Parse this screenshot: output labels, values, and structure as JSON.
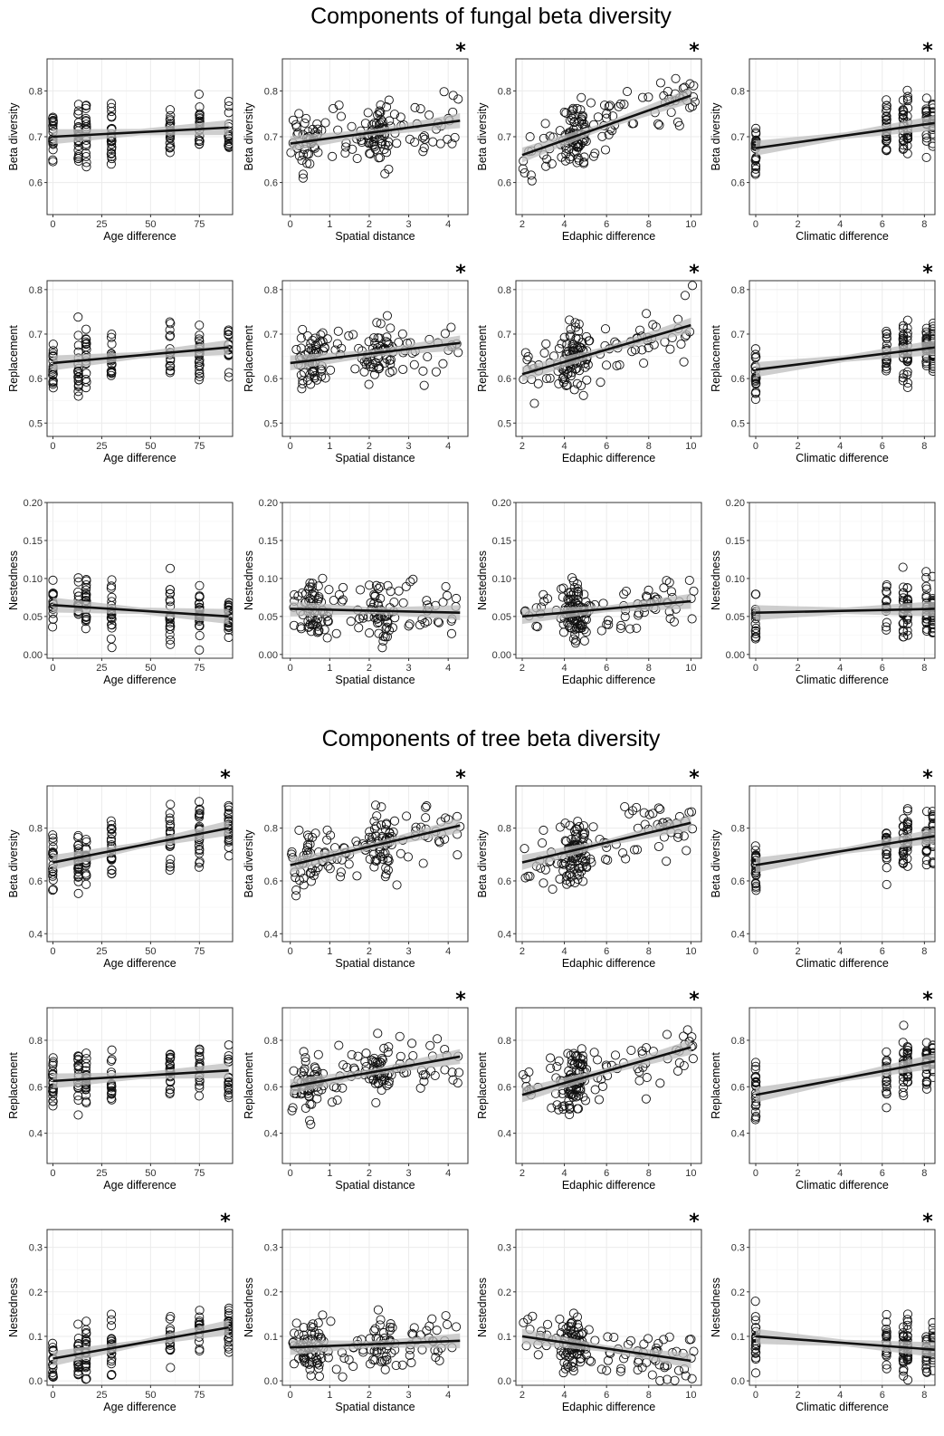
{
  "figure": {
    "titles": [
      "Components of fungal beta diversity",
      "Components of tree beta diversity"
    ]
  },
  "chart_data": [
    {
      "id": "f-b-age",
      "group": "fungal",
      "type": "scatter",
      "xlabel": "Age difference",
      "ylabel": "Beta diversity",
      "xlim": [
        -3,
        92
      ],
      "ylim": [
        0.53,
        0.87
      ],
      "xticks": [
        0,
        25,
        50,
        75
      ],
      "yticks": [
        0.6,
        0.7,
        0.8
      ],
      "significant": false,
      "trend": {
        "x0": 0,
        "y0": 0.7,
        "x1": 90,
        "y1": 0.72
      },
      "layout": "columns",
      "xcols": [
        0,
        13,
        17,
        30,
        60,
        75,
        90
      ]
    },
    {
      "id": "f-b-spa",
      "group": "fungal",
      "type": "scatter",
      "xlabel": "Spatial distance",
      "ylabel": "Beta diversity",
      "xlim": [
        -0.2,
        4.5
      ],
      "ylim": [
        0.53,
        0.87
      ],
      "xticks": [
        0,
        1,
        2,
        3,
        4
      ],
      "yticks": [
        0.6,
        0.7,
        0.8
      ],
      "significant": true,
      "trend": {
        "x0": 0,
        "y0": 0.685,
        "x1": 4.3,
        "y1": 0.735
      },
      "layout": "cloud",
      "xmin": 0,
      "xmax": 4.3,
      "xclusters": [
        0.5,
        2.3
      ]
    },
    {
      "id": "f-b-eda",
      "group": "fungal",
      "type": "scatter",
      "xlabel": "Edaphic difference",
      "ylabel": "Beta diversity",
      "xlim": [
        1.7,
        10.5
      ],
      "ylim": [
        0.53,
        0.87
      ],
      "xticks": [
        2,
        4,
        6,
        8,
        10
      ],
      "yticks": [
        0.6,
        0.7,
        0.8
      ],
      "significant": true,
      "trend": {
        "x0": 2,
        "y0": 0.66,
        "x1": 10,
        "y1": 0.79
      },
      "layout": "cloud",
      "xmin": 2,
      "xmax": 10.2,
      "xclusters": [
        4.5
      ]
    },
    {
      "id": "f-b-cli",
      "group": "fungal",
      "type": "scatter",
      "xlabel": "Climatic difference",
      "ylabel": "Beta diversity",
      "xlim": [
        -0.3,
        8.5
      ],
      "ylim": [
        0.53,
        0.87
      ],
      "xticks": [
        0,
        2,
        4,
        6,
        8
      ],
      "yticks": [
        0.6,
        0.7,
        0.8
      ],
      "significant": true,
      "trend": {
        "x0": 0,
        "y0": 0.675,
        "x1": 8.5,
        "y1": 0.73
      },
      "layout": "columns",
      "xcols": [
        0,
        6.2,
        7,
        7.2,
        8.1,
        8.4
      ]
    },
    {
      "id": "f-r-age",
      "group": "fungal",
      "type": "scatter",
      "xlabel": "Age difference",
      "ylabel": "Replacement",
      "xlim": [
        -3,
        92
      ],
      "ylim": [
        0.47,
        0.82
      ],
      "xticks": [
        0,
        25,
        50,
        75
      ],
      "yticks": [
        0.5,
        0.6,
        0.7,
        0.8
      ],
      "significant": false,
      "trend": {
        "x0": 0,
        "y0": 0.635,
        "x1": 90,
        "y1": 0.67
      },
      "layout": "columns",
      "xcols": [
        0,
        13,
        17,
        30,
        60,
        75,
        90
      ]
    },
    {
      "id": "f-r-spa",
      "group": "fungal",
      "type": "scatter",
      "xlabel": "Spatial distance",
      "ylabel": "Replacement",
      "xlim": [
        -0.2,
        4.5
      ],
      "ylim": [
        0.47,
        0.82
      ],
      "xticks": [
        0,
        1,
        2,
        3,
        4
      ],
      "yticks": [
        0.5,
        0.6,
        0.7,
        0.8
      ],
      "significant": true,
      "trend": {
        "x0": 0,
        "y0": 0.635,
        "x1": 4.3,
        "y1": 0.68
      },
      "layout": "cloud",
      "xmin": 0,
      "xmax": 4.3,
      "xclusters": [
        0.5,
        2.3
      ]
    },
    {
      "id": "f-r-eda",
      "group": "fungal",
      "type": "scatter",
      "xlabel": "Edaphic difference",
      "ylabel": "Replacement",
      "xlim": [
        1.7,
        10.5
      ],
      "ylim": [
        0.47,
        0.82
      ],
      "xticks": [
        2,
        4,
        6,
        8,
        10
      ],
      "yticks": [
        0.5,
        0.6,
        0.7,
        0.8
      ],
      "significant": true,
      "trend": {
        "x0": 2,
        "y0": 0.61,
        "x1": 10,
        "y1": 0.72
      },
      "layout": "cloud",
      "xmin": 2,
      "xmax": 10.2,
      "xclusters": [
        4.5
      ]
    },
    {
      "id": "f-r-cli",
      "group": "fungal",
      "type": "scatter",
      "xlabel": "Climatic difference",
      "ylabel": "Replacement",
      "xlim": [
        -0.3,
        8.5
      ],
      "ylim": [
        0.47,
        0.82
      ],
      "xticks": [
        0,
        2,
        4,
        6,
        8
      ],
      "yticks": [
        0.5,
        0.6,
        0.7,
        0.8
      ],
      "significant": true,
      "trend": {
        "x0": 0,
        "y0": 0.62,
        "x1": 8.5,
        "y1": 0.67
      },
      "layout": "columns",
      "xcols": [
        0,
        6.2,
        7,
        7.2,
        8.1,
        8.4
      ]
    },
    {
      "id": "f-n-age",
      "group": "fungal",
      "type": "scatter",
      "xlabel": "Age difference",
      "ylabel": "Nestedness",
      "xlim": [
        -3,
        92
      ],
      "ylim": [
        -0.005,
        0.2
      ],
      "xticks": [
        0,
        25,
        50,
        75
      ],
      "yticks": [
        0.0,
        0.05,
        0.1,
        0.15,
        0.2
      ],
      "ytickFormat": 2,
      "significant": false,
      "trend": {
        "x0": 0,
        "y0": 0.065,
        "x1": 90,
        "y1": 0.05
      },
      "layout": "columns",
      "xcols": [
        0,
        13,
        17,
        30,
        60,
        75,
        90
      ]
    },
    {
      "id": "f-n-spa",
      "group": "fungal",
      "type": "scatter",
      "xlabel": "Spatial distance",
      "ylabel": "Nestedness",
      "xlim": [
        -0.2,
        4.5
      ],
      "ylim": [
        -0.005,
        0.2
      ],
      "xticks": [
        0,
        1,
        2,
        3,
        4
      ],
      "yticks": [
        0.0,
        0.05,
        0.1,
        0.15,
        0.2
      ],
      "ytickFormat": 2,
      "significant": false,
      "trend": {
        "x0": 0,
        "y0": 0.06,
        "x1": 4.3,
        "y1": 0.055
      },
      "layout": "cloud",
      "xmin": 0,
      "xmax": 4.3,
      "xclusters": [
        0.5,
        2.3
      ]
    },
    {
      "id": "f-n-eda",
      "group": "fungal",
      "type": "scatter",
      "xlabel": "Edaphic difference",
      "ylabel": "Nestedness",
      "xlim": [
        1.7,
        10.5
      ],
      "ylim": [
        -0.005,
        0.2
      ],
      "xticks": [
        2,
        4,
        6,
        8,
        10
      ],
      "yticks": [
        0.0,
        0.05,
        0.1,
        0.15,
        0.2
      ],
      "ytickFormat": 2,
      "significant": false,
      "trend": {
        "x0": 2,
        "y0": 0.05,
        "x1": 10,
        "y1": 0.07
      },
      "layout": "cloud",
      "xmin": 2,
      "xmax": 10.2,
      "xclusters": [
        4.5
      ]
    },
    {
      "id": "f-n-cli",
      "group": "fungal",
      "type": "scatter",
      "xlabel": "Climatic difference",
      "ylabel": "Nestedness",
      "xlim": [
        -0.3,
        8.5
      ],
      "ylim": [
        -0.005,
        0.2
      ],
      "xticks": [
        0,
        2,
        4,
        6,
        8
      ],
      "yticks": [
        0.0,
        0.05,
        0.1,
        0.15,
        0.2
      ],
      "ytickFormat": 2,
      "significant": false,
      "trend": {
        "x0": 0,
        "y0": 0.055,
        "x1": 8.5,
        "y1": 0.06
      },
      "layout": "columns",
      "xcols": [
        0,
        6.2,
        7,
        7.2,
        8.1,
        8.4
      ]
    },
    {
      "id": "t-b-age",
      "group": "tree",
      "type": "scatter",
      "xlabel": "Age difference",
      "ylabel": "Beta diversity",
      "xlim": [
        -3,
        92
      ],
      "ylim": [
        0.37,
        0.96
      ],
      "xticks": [
        0,
        25,
        50,
        75
      ],
      "yticks": [
        0.4,
        0.6,
        0.8
      ],
      "significant": true,
      "trend": {
        "x0": 0,
        "y0": 0.67,
        "x1": 90,
        "y1": 0.8
      },
      "layout": "columns",
      "xcols": [
        0,
        13,
        17,
        30,
        60,
        75,
        90
      ]
    },
    {
      "id": "t-b-spa",
      "group": "tree",
      "type": "scatter",
      "xlabel": "Spatial distance",
      "ylabel": "Beta diversity",
      "xlim": [
        -0.2,
        4.5
      ],
      "ylim": [
        0.37,
        0.96
      ],
      "xticks": [
        0,
        1,
        2,
        3,
        4
      ],
      "yticks": [
        0.4,
        0.6,
        0.8
      ],
      "significant": true,
      "trend": {
        "x0": 0,
        "y0": 0.66,
        "x1": 4.3,
        "y1": 0.81
      },
      "layout": "cloud",
      "xmin": 0,
      "xmax": 4.3,
      "xclusters": [
        0.5,
        2.3
      ]
    },
    {
      "id": "t-b-eda",
      "group": "tree",
      "type": "scatter",
      "xlabel": "Edaphic difference",
      "ylabel": "Beta diversity",
      "xlim": [
        1.7,
        10.5
      ],
      "ylim": [
        0.37,
        0.96
      ],
      "xticks": [
        2,
        4,
        6,
        8,
        10
      ],
      "yticks": [
        0.4,
        0.6,
        0.8
      ],
      "significant": true,
      "trend": {
        "x0": 2,
        "y0": 0.67,
        "x1": 10,
        "y1": 0.82
      },
      "layout": "cloud",
      "xmin": 2,
      "xmax": 10.2,
      "xclusters": [
        4.5
      ]
    },
    {
      "id": "t-b-cli",
      "group": "tree",
      "type": "scatter",
      "xlabel": "Climatic difference",
      "ylabel": "Beta diversity",
      "xlim": [
        -0.3,
        8.5
      ],
      "ylim": [
        0.37,
        0.96
      ],
      "xticks": [
        0,
        2,
        4,
        6,
        8
      ],
      "yticks": [
        0.4,
        0.6,
        0.8
      ],
      "significant": true,
      "trend": {
        "x0": 0,
        "y0": 0.66,
        "x1": 8.5,
        "y1": 0.77
      },
      "layout": "columns",
      "xcols": [
        0,
        6.2,
        7,
        7.2,
        8.1,
        8.4
      ]
    },
    {
      "id": "t-r-age",
      "group": "tree",
      "type": "scatter",
      "xlabel": "Age difference",
      "ylabel": "Replacement",
      "xlim": [
        -3,
        92
      ],
      "ylim": [
        0.27,
        0.94
      ],
      "xticks": [
        0,
        25,
        50,
        75
      ],
      "yticks": [
        0.4,
        0.6,
        0.8
      ],
      "significant": false,
      "trend": {
        "x0": 0,
        "y0": 0.625,
        "x1": 90,
        "y1": 0.67
      },
      "layout": "columns",
      "xcols": [
        0,
        13,
        17,
        30,
        60,
        75,
        90
      ]
    },
    {
      "id": "t-r-spa",
      "group": "tree",
      "type": "scatter",
      "xlabel": "Spatial distance",
      "ylabel": "Replacement",
      "xlim": [
        -0.2,
        4.5
      ],
      "ylim": [
        0.27,
        0.94
      ],
      "xticks": [
        0,
        1,
        2,
        3,
        4
      ],
      "yticks": [
        0.4,
        0.6,
        0.8
      ],
      "significant": true,
      "trend": {
        "x0": 0,
        "y0": 0.6,
        "x1": 4.3,
        "y1": 0.73
      },
      "layout": "cloud",
      "xmin": 0,
      "xmax": 4.3,
      "xclusters": [
        0.5,
        2.3
      ]
    },
    {
      "id": "t-r-eda",
      "group": "tree",
      "type": "scatter",
      "xlabel": "Edaphic difference",
      "ylabel": "Replacement",
      "xlim": [
        1.7,
        10.5
      ],
      "ylim": [
        0.27,
        0.94
      ],
      "xticks": [
        2,
        4,
        6,
        8,
        10
      ],
      "yticks": [
        0.4,
        0.6,
        0.8
      ],
      "significant": true,
      "trend": {
        "x0": 2,
        "y0": 0.565,
        "x1": 10,
        "y1": 0.77
      },
      "layout": "cloud",
      "xmin": 2,
      "xmax": 10.2,
      "xclusters": [
        4.5
      ]
    },
    {
      "id": "t-r-cli",
      "group": "tree",
      "type": "scatter",
      "xlabel": "Climatic difference",
      "ylabel": "Replacement",
      "xlim": [
        -0.3,
        8.5
      ],
      "ylim": [
        0.27,
        0.94
      ],
      "xticks": [
        0,
        2,
        4,
        6,
        8
      ],
      "yticks": [
        0.4,
        0.6,
        0.8
      ],
      "significant": true,
      "trend": {
        "x0": 0,
        "y0": 0.565,
        "x1": 8.5,
        "y1": 0.71
      },
      "layout": "columns",
      "xcols": [
        0,
        6.2,
        7,
        7.2,
        8.1,
        8.4
      ]
    },
    {
      "id": "t-n-age",
      "group": "tree",
      "type": "scatter",
      "xlabel": "Age difference",
      "ylabel": "Nestedness",
      "xlim": [
        -3,
        92
      ],
      "ylim": [
        -0.01,
        0.34
      ],
      "xticks": [
        0,
        25,
        50,
        75
      ],
      "yticks": [
        0.0,
        0.1,
        0.2,
        0.3
      ],
      "significant": true,
      "trend": {
        "x0": 0,
        "y0": 0.05,
        "x1": 90,
        "y1": 0.12
      },
      "layout": "columns",
      "xcols": [
        0,
        13,
        17,
        30,
        60,
        75,
        90
      ]
    },
    {
      "id": "t-n-spa",
      "group": "tree",
      "type": "scatter",
      "xlabel": "Spatial distance",
      "ylabel": "Nestedness",
      "xlim": [
        -0.2,
        4.5
      ],
      "ylim": [
        -0.01,
        0.34
      ],
      "xticks": [
        0,
        1,
        2,
        3,
        4
      ],
      "yticks": [
        0.0,
        0.1,
        0.2,
        0.3
      ],
      "significant": false,
      "trend": {
        "x0": 0,
        "y0": 0.075,
        "x1": 4.3,
        "y1": 0.09
      },
      "layout": "cloud",
      "xmin": 0,
      "xmax": 4.3,
      "xclusters": [
        0.5,
        2.3
      ]
    },
    {
      "id": "t-n-eda",
      "group": "tree",
      "type": "scatter",
      "xlabel": "Edaphic difference",
      "ylabel": "Nestedness",
      "xlim": [
        1.7,
        10.5
      ],
      "ylim": [
        -0.01,
        0.34
      ],
      "xticks": [
        2,
        4,
        6,
        8,
        10
      ],
      "yticks": [
        0.0,
        0.1,
        0.2,
        0.3
      ],
      "significant": true,
      "trend": {
        "x0": 2,
        "y0": 0.1,
        "x1": 10,
        "y1": 0.045
      },
      "layout": "cloud",
      "xmin": 2,
      "xmax": 10.2,
      "xclusters": [
        4.5
      ]
    },
    {
      "id": "t-n-cli",
      "group": "tree",
      "type": "scatter",
      "xlabel": "Climatic difference",
      "ylabel": "Nestedness",
      "xlim": [
        -0.3,
        8.5
      ],
      "ylim": [
        -0.01,
        0.34
      ],
      "xticks": [
        0,
        2,
        4,
        6,
        8
      ],
      "yticks": [
        0.0,
        0.1,
        0.2,
        0.3
      ],
      "significant": true,
      "trend": {
        "x0": 0,
        "y0": 0.1,
        "x1": 8.5,
        "y1": 0.07
      },
      "layout": "columns",
      "xcols": [
        0,
        6.2,
        7,
        7.2,
        8.1,
        8.4
      ]
    }
  ],
  "colors": {
    "point_stroke": "#111111",
    "trend": "#111111",
    "ci_band": "#bdbdbd",
    "grid": "#ebebeb",
    "panel_border": "#333333"
  }
}
